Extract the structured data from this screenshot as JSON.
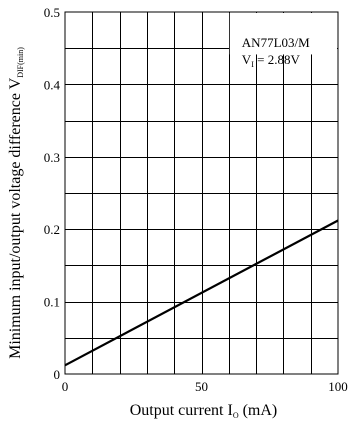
{
  "chart_data": {
    "type": "line",
    "title": "",
    "xlabel": {
      "main": "Output current  I",
      "sub": "O",
      "unit": "  (mA)"
    },
    "ylabel": {
      "main": "Minimum input/output voltage difference  V",
      "sub": "DIF(min)"
    },
    "xlim": [
      0,
      100
    ],
    "ylim": [
      0,
      0.5
    ],
    "x_major_ticks": [
      0,
      50,
      100
    ],
    "x_tick_labels": [
      "0",
      "50",
      "100"
    ],
    "y_major_ticks": [
      0,
      0.1,
      0.2,
      0.3,
      0.4,
      0.5
    ],
    "y_tick_labels": [
      "0",
      "0.1",
      "0.2",
      "0.3",
      "0.4",
      "0.5"
    ],
    "grid": true,
    "x_grid_step": 10,
    "y_grid_step": 0.05,
    "legend": {
      "placement": "top-right",
      "line1": "AN77L03/M",
      "line2_main": "V",
      "line2_sub": "I",
      "line2_rest": " = 2.88V"
    },
    "series": [
      {
        "x": [
          0,
          100
        ],
        "y": [
          0.012,
          0.212
        ]
      }
    ]
  }
}
